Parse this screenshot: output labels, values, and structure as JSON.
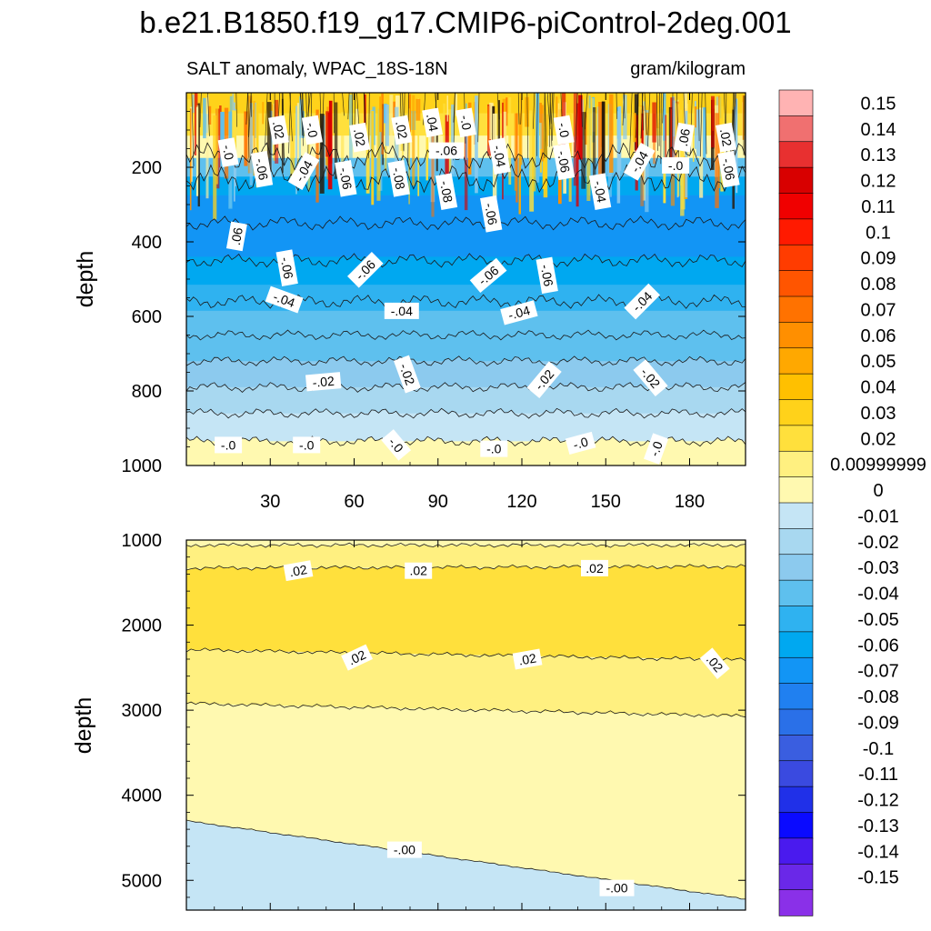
{
  "chart_data": [
    {
      "type": "contour",
      "title": "b.e21.B1850.f19_g17.CMIP6-piControl-2deg.001",
      "subtitle_left": "SALT anomaly, WPAC_18S-18N",
      "subtitle_right": "gram/kilogram",
      "ylabel": "depth",
      "ylim": [
        1000,
        0
      ],
      "xlim": [
        0,
        200
      ],
      "x_ticks": [
        "30",
        "60",
        "90",
        "120",
        "150",
        "180"
      ],
      "x_tick_values": [
        30,
        60,
        90,
        120,
        150,
        180
      ],
      "y_ticks": [
        "200",
        "400",
        "600",
        "800",
        "1000"
      ],
      "y_tick_values": [
        200,
        400,
        600,
        800,
        1000
      ],
      "bands": [
        {
          "depth": 30,
          "value": 0.03
        },
        {
          "depth": 80,
          "value": 0.02
        },
        {
          "depth": 150,
          "value": 0.0
        },
        {
          "depth": 200,
          "value": -0.04
        },
        {
          "depth": 250,
          "value": -0.06
        },
        {
          "depth": 300,
          "value": -0.07
        },
        {
          "depth": 400,
          "value": -0.07
        },
        {
          "depth": 480,
          "value": -0.06
        },
        {
          "depth": 550,
          "value": -0.05
        },
        {
          "depth": 620,
          "value": -0.04
        },
        {
          "depth": 700,
          "value": -0.03
        },
        {
          "depth": 780,
          "value": -0.02
        },
        {
          "depth": 850,
          "value": -0.01
        },
        {
          "depth": 920,
          "value": 0.0
        },
        {
          "depth": 1000,
          "value": 0.005
        }
      ],
      "contour_lines": [
        {
          "depth": 650,
          "value": -0.04
        },
        {
          "depth": 720,
          "value": -0.03
        },
        {
          "depth": 790,
          "value": -0.02
        },
        {
          "depth": 860,
          "value": -0.01
        },
        {
          "depth": 935,
          "value": 0.0
        },
        {
          "depth": 560,
          "value": -0.05
        },
        {
          "depth": 450,
          "value": -0.06
        },
        {
          "depth": 350,
          "value": -0.07
        },
        {
          "depth": 230,
          "value": -0.06
        },
        {
          "depth": 170,
          "value": -0.02
        }
      ],
      "contour_labels": [
        {
          "text": ".02",
          "x": 33,
          "depth": 100,
          "angle": 80
        },
        {
          "text": "-.0",
          "x": 45,
          "depth": 100,
          "angle": 80
        },
        {
          "text": ".02",
          "x": 62,
          "depth": 120,
          "angle": 80
        },
        {
          "text": ".02",
          "x": 77,
          "depth": 100,
          "angle": 80
        },
        {
          "text": ".04",
          "x": 88,
          "depth": 80,
          "angle": 80
        },
        {
          "text": "-.0",
          "x": 100,
          "depth": 80,
          "angle": 80
        },
        {
          "text": "-.0",
          "x": 135,
          "depth": 100,
          "angle": 80
        },
        {
          "text": ".06",
          "x": 178,
          "depth": 120,
          "angle": -80
        },
        {
          "text": ".02",
          "x": 193,
          "depth": 120,
          "angle": 80
        },
        {
          "text": "-.0",
          "x": 15,
          "depth": 160,
          "angle": 80
        },
        {
          "text": "-.06",
          "x": 93,
          "depth": 155,
          "angle": 0
        },
        {
          "text": "-.04",
          "x": 112,
          "depth": 170,
          "angle": 80
        },
        {
          "text": "-.06",
          "x": 135,
          "depth": 185,
          "angle": 80
        },
        {
          "text": "-.04",
          "x": 162,
          "depth": 185,
          "angle": -60
        },
        {
          "text": "-.0",
          "x": 175,
          "depth": 195,
          "angle": 0
        },
        {
          "text": "-.06",
          "x": 194,
          "depth": 205,
          "angle": 80
        },
        {
          "text": "-.06",
          "x": 27,
          "depth": 205,
          "angle": 80
        },
        {
          "text": "-.04",
          "x": 42,
          "depth": 210,
          "angle": -60
        },
        {
          "text": "-.06",
          "x": 57,
          "depth": 230,
          "angle": 80
        },
        {
          "text": "-.08",
          "x": 76,
          "depth": 230,
          "angle": 80
        },
        {
          "text": "-.08",
          "x": 93,
          "depth": 265,
          "angle": 80
        },
        {
          "text": "-.04",
          "x": 148,
          "depth": 265,
          "angle": 80
        },
        {
          "text": ".06",
          "x": 18,
          "depth": 385,
          "angle": -80
        },
        {
          "text": "-.06",
          "x": 109,
          "depth": 325,
          "angle": 80
        },
        {
          "text": "-.06",
          "x": 36,
          "depth": 470,
          "angle": 80
        },
        {
          "text": "-.06",
          "x": 64,
          "depth": 475,
          "angle": -45
        },
        {
          "text": "-.06",
          "x": 108,
          "depth": 490,
          "angle": -40
        },
        {
          "text": "-.06",
          "x": 129,
          "depth": 490,
          "angle": 80
        },
        {
          "text": "-.04",
          "x": 35,
          "depth": 555,
          "angle": 20
        },
        {
          "text": "-.04",
          "x": 77,
          "depth": 585,
          "angle": 0
        },
        {
          "text": "-.04",
          "x": 119,
          "depth": 590,
          "angle": -15
        },
        {
          "text": "-.04",
          "x": 163,
          "depth": 560,
          "angle": -45
        },
        {
          "text": "-.02",
          "x": 49,
          "depth": 775,
          "angle": -5
        },
        {
          "text": "-.02",
          "x": 79,
          "depth": 755,
          "angle": 70
        },
        {
          "text": "-.02",
          "x": 128,
          "depth": 770,
          "angle": -50
        },
        {
          "text": "-.02",
          "x": 166,
          "depth": 765,
          "angle": 50
        },
        {
          "text": "-.0",
          "x": 15,
          "depth": 945,
          "angle": 0
        },
        {
          "text": "-.0",
          "x": 43,
          "depth": 945,
          "angle": 0
        },
        {
          "text": "-.0",
          "x": 75,
          "depth": 945,
          "angle": 50
        },
        {
          "text": "-.0",
          "x": 110,
          "depth": 955,
          "angle": 0
        },
        {
          "text": "-.0",
          "x": 141,
          "depth": 940,
          "angle": -15
        },
        {
          "text": "-.0",
          "x": 168,
          "depth": 955,
          "angle": -70
        }
      ]
    },
    {
      "type": "contour",
      "ylabel": "depth",
      "ylim": [
        5350,
        1000
      ],
      "xlim": [
        0,
        200
      ],
      "y_ticks": [
        "1000",
        "2000",
        "3000",
        "4000",
        "5000"
      ],
      "y_tick_values": [
        1000,
        2000,
        3000,
        4000,
        5000
      ],
      "regions": [
        {
          "from_depth": 1000,
          "to_depth": 1300,
          "value": 0.01
        },
        {
          "from_depth": 1300,
          "to_depth": 2300,
          "value": 0.03
        },
        {
          "from_depth": 2300,
          "to_depth": 2950,
          "value": 0.02
        },
        {
          "from_depth": 2950,
          "to_depth": 4800,
          "value": 0.005
        },
        {
          "from_depth": 4800,
          "to_depth": 5350,
          "value": -0.005
        }
      ],
      "contour_lines": [
        {
          "left_depth": 1060,
          "right_depth": 1060,
          "value": 0.01
        },
        {
          "left_depth": 1330,
          "right_depth": 1310,
          "value": 0.02
        },
        {
          "left_depth": 2290,
          "right_depth": 2410,
          "value": 0.02
        },
        {
          "left_depth": 2920,
          "right_depth": 3070,
          "value": 0.01
        },
        {
          "left_depth": 4300,
          "right_depth": 5220,
          "value": 0.0
        }
      ],
      "contour_labels": [
        {
          "text": ".02",
          "x": 40,
          "depth": 1360,
          "angle": -10
        },
        {
          "text": ".02",
          "x": 83,
          "depth": 1360,
          "angle": 0
        },
        {
          "text": ".02",
          "x": 146,
          "depth": 1330,
          "angle": 0
        },
        {
          "text": ".02",
          "x": 61,
          "depth": 2380,
          "angle": -25
        },
        {
          "text": ".02",
          "x": 122,
          "depth": 2400,
          "angle": -10
        },
        {
          "text": ".02",
          "x": 189,
          "depth": 2450,
          "angle": 50
        },
        {
          "text": "-.00",
          "x": 78,
          "depth": 4640,
          "angle": 0
        },
        {
          "text": "-.00",
          "x": 154,
          "depth": 5090,
          "angle": 0
        }
      ]
    }
  ],
  "colorbar": {
    "labels": [
      "0.15",
      "0.14",
      "0.13",
      "0.12",
      "0.11",
      "0.1",
      "0.09",
      "0.08",
      "0.07",
      "0.06",
      "0.05",
      "0.04",
      "0.03",
      "0.02",
      "0.00999999",
      "0",
      "-0.01",
      "-0.02",
      "-0.03",
      "-0.04",
      "-0.05",
      "-0.06",
      "-0.07",
      "-0.08",
      "-0.09",
      "-0.1",
      "-0.11",
      "-0.12",
      "-0.13",
      "-0.14",
      "-0.15"
    ],
    "colors": [
      "#ffb3b3",
      "#f07070",
      "#e83030",
      "#d80000",
      "#f00000",
      "#ff1a00",
      "#ff3c00",
      "#ff5500",
      "#ff7200",
      "#ff8f00",
      "#ffa800",
      "#ffc000",
      "#ffd21a",
      "#ffe03c",
      "#fff080",
      "#fff9b0",
      "#c5e5f5",
      "#a8d8f0",
      "#8ccaee",
      "#5ec0ee",
      "#2fb2f0",
      "#00a8f0",
      "#1295f5",
      "#2080f0",
      "#2a70e8",
      "#3a5ee0",
      "#3a4ae0",
      "#2030e8",
      "#0a0aff",
      "#4a1aee",
      "#6a28e8",
      "#8a30e8"
    ]
  }
}
